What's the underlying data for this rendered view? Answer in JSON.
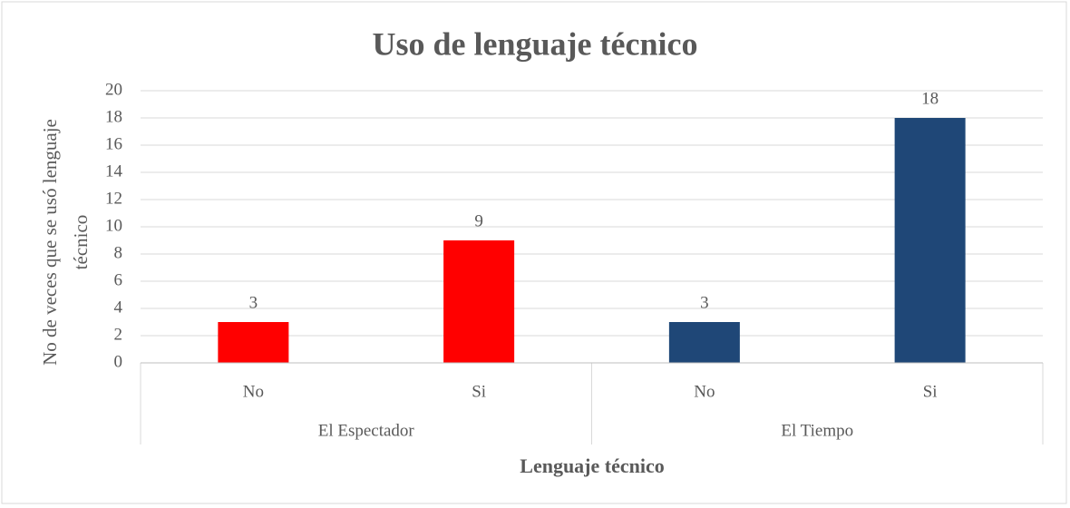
{
  "chart_data": {
    "type": "bar",
    "title": "Uso de lenguaje técnico",
    "x_label": "Lenguaje técnico",
    "y_label": "No de veces que se usó lenguaje técnico",
    "groups": [
      {
        "name": "El Espectador",
        "categories": [
          "No",
          "Si"
        ],
        "values": [
          3,
          9
        ],
        "color": "#ff0000"
      },
      {
        "name": "El Tiempo",
        "categories": [
          "No",
          "Si"
        ],
        "values": [
          3,
          18
        ],
        "color": "#1f4777"
      }
    ],
    "ylim": [
      0,
      20
    ],
    "yticks": [
      0,
      2,
      4,
      6,
      8,
      10,
      12,
      14,
      16,
      18,
      20
    ],
    "grid": true
  }
}
